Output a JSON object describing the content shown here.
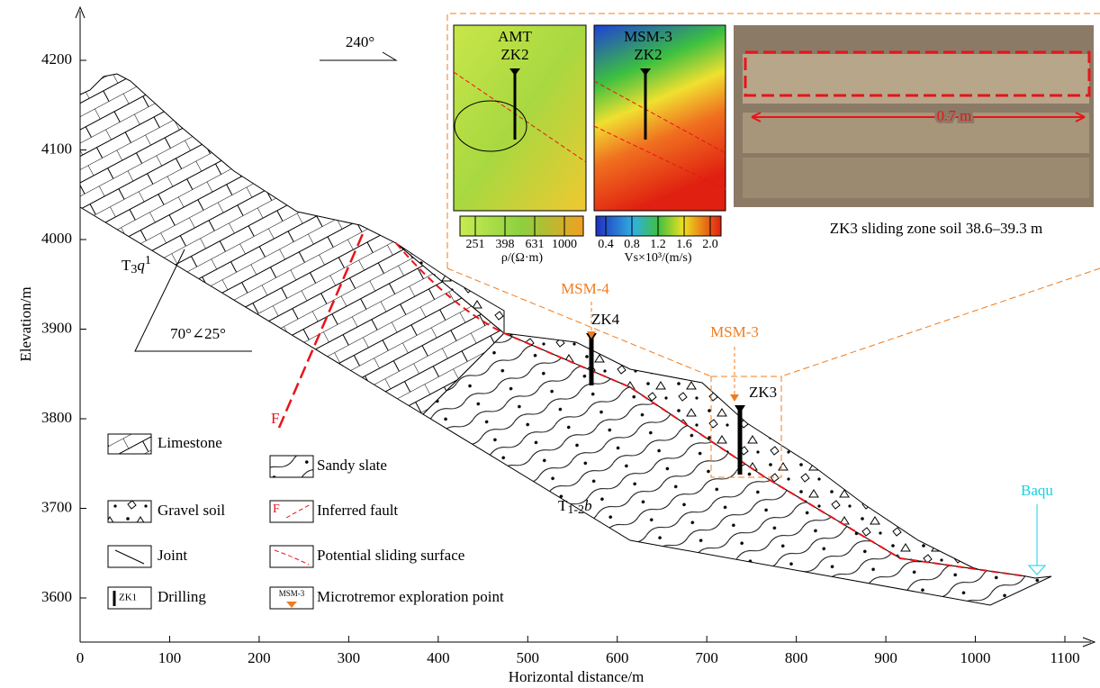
{
  "axes": {
    "x_label": "Horizontal distance/m",
    "y_label": "Elevation/m",
    "x_ticks": [
      0,
      100,
      200,
      300,
      400,
      500,
      600,
      700,
      800,
      900,
      1000,
      1100
    ],
    "y_ticks": [
      3600,
      3700,
      3800,
      3900,
      4000,
      4100,
      4200
    ]
  },
  "annotations": {
    "direction": "240°",
    "formation_upper": {
      "base": "T",
      "sub": "3",
      "italic": "q",
      "sup": "1"
    },
    "attitude": "70°∠25°",
    "fault": "F",
    "formation_lower": {
      "base": "T",
      "sub": "1-2",
      "italic": "b"
    },
    "msm4": "MSM-4",
    "zk4": "ZK4",
    "msm3": "MSM-3",
    "zk3": "ZK3",
    "river": "Baqu"
  },
  "inset": {
    "amt_title": "AMT",
    "amt_hole": "ZK2",
    "msm_title": "MSM-3",
    "msm_hole": "ZK2",
    "amt_ticks": [
      "251",
      "398",
      "631",
      "1000"
    ],
    "amt_unit": "ρ/(Ω·m)",
    "msm_ticks": [
      "0.4",
      "0.8",
      "1.2",
      "1.6",
      "2.0"
    ],
    "msm_unit": "Vs×10³/(m/s)",
    "photo_scale": "0.7 m",
    "photo_caption": "ZK3 sliding zone soil 38.6–39.3 m"
  },
  "legend": {
    "items": [
      "Limestone",
      "Sandy slate",
      "Gravel soil",
      "Inferred fault",
      "Joint",
      "Potential sliding surface",
      "Drilling",
      "Microtremor exploration point"
    ],
    "fault_icon": "F",
    "drill_icon": "ZK1",
    "msm_icon": "MSM-3"
  }
}
